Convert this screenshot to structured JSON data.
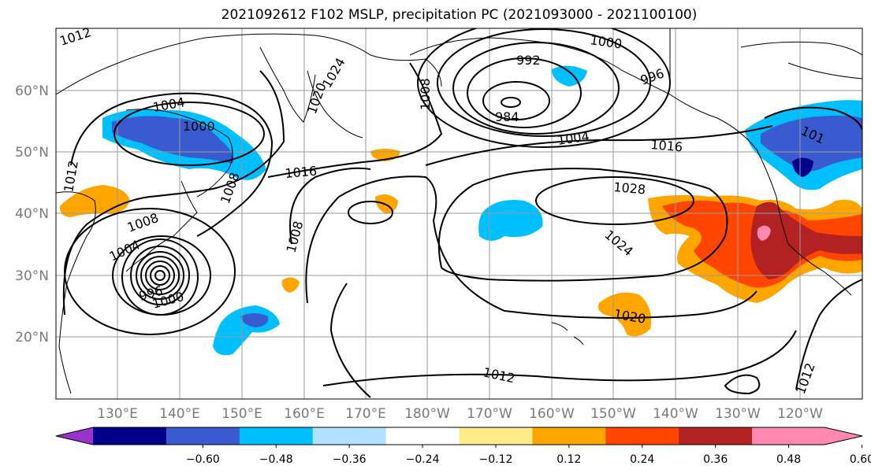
{
  "title": "2021092612 F102 MSLP, precipitation PC (2021093000 - 2021100100)",
  "latitude_labels": [
    "60°N",
    "50°N",
    "40°N",
    "30°N",
    "20°N"
  ],
  "longitude_labels": [
    "130°E",
    "140°E",
    "150°E",
    "160°E",
    "170°E",
    "180°W",
    "170°W",
    "160°W",
    "150°W",
    "140°W",
    "130°W",
    "120°W"
  ],
  "isobar_labels": [
    "1012",
    "1004",
    "1000",
    "1024",
    "1020",
    "1008",
    "1000",
    "992",
    "996",
    "984",
    "1004",
    "1016",
    "1016",
    "1012",
    "1008",
    "1028",
    "1008",
    "1024",
    "1008",
    "1004",
    "996",
    "1000",
    "1020",
    "1012",
    "1012",
    "101"
  ],
  "colorbar": {
    "tick_labels": [
      "−0.60",
      "−0.48",
      "−0.36",
      "−0.24",
      "−0.12",
      "0.12",
      "0.24",
      "0.36",
      "0.48",
      "0.60"
    ],
    "colors": [
      "#9932cc",
      "#00008b",
      "#3a5bd0",
      "#00bfff",
      "#b0e2ff",
      "#ffffff",
      "#ffec8b",
      "#ffa500",
      "#ff4500",
      "#b22222",
      "#ff88b0",
      "#ff88b0"
    ]
  },
  "colors": {
    "precip_neg_strong": "#00008b",
    "precip_neg_med": "#3a5bd0",
    "precip_neg": "#00bfff",
    "precip_neg_light": "#b0e2ff",
    "precip_pos_light": "#ffec8b",
    "precip_pos": "#ffa500",
    "precip_pos_med": "#ff4500",
    "precip_pos_strong": "#b22222",
    "precip_pos_max": "#ff88b0",
    "grid": "#9a9a9a"
  }
}
